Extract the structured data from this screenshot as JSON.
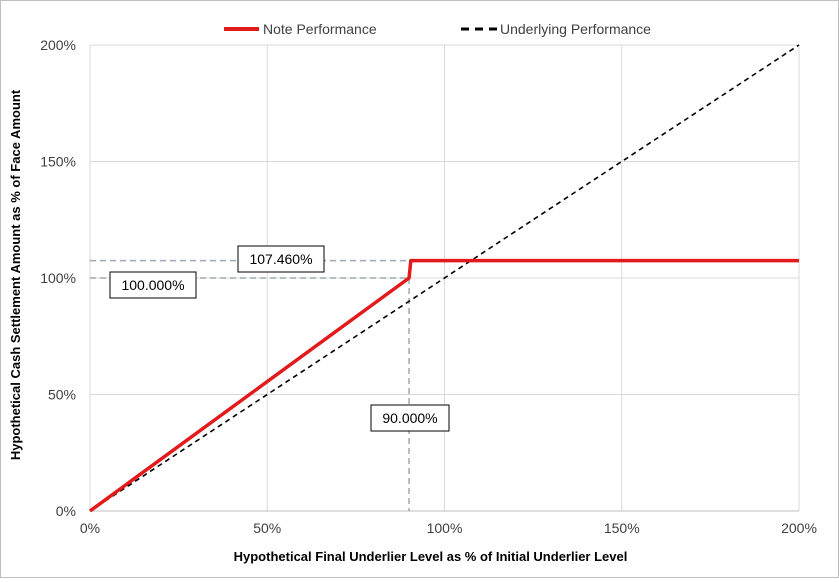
{
  "chart_data": {
    "type": "line",
    "xlabel": "Hypothetical Final Underlier Level as % of Initial Underlier Level",
    "ylabel": "Hypothetical Cash Settlement Amount as % of Face Amount",
    "xlim": [
      0,
      200
    ],
    "ylim": [
      0,
      200
    ],
    "x_ticks": [
      0,
      50,
      100,
      150,
      200
    ],
    "x_tick_labels": [
      "0%",
      "50%",
      "100%",
      "150%",
      "200%"
    ],
    "y_ticks": [
      0,
      50,
      100,
      150,
      200
    ],
    "y_tick_labels": [
      "0%",
      "50%",
      "100%",
      "150%",
      "200%"
    ],
    "grid": true,
    "legend_position": "top",
    "series": [
      {
        "name": "Note Performance",
        "color": "#e31a1c",
        "style": "solid",
        "points": [
          [
            0,
            0
          ],
          [
            90,
            100
          ],
          [
            90.5,
            107.46
          ],
          [
            200,
            107.46
          ]
        ]
      },
      {
        "name": "Underlying Performance",
        "color": "#000000",
        "style": "dashed",
        "points": [
          [
            0,
            0
          ],
          [
            200,
            200
          ]
        ]
      }
    ],
    "annotations": [
      {
        "label": "107.460%",
        "value": 107.46
      },
      {
        "label": "100.000%",
        "value": 100
      },
      {
        "label": "90.000%",
        "value": 90
      }
    ]
  }
}
